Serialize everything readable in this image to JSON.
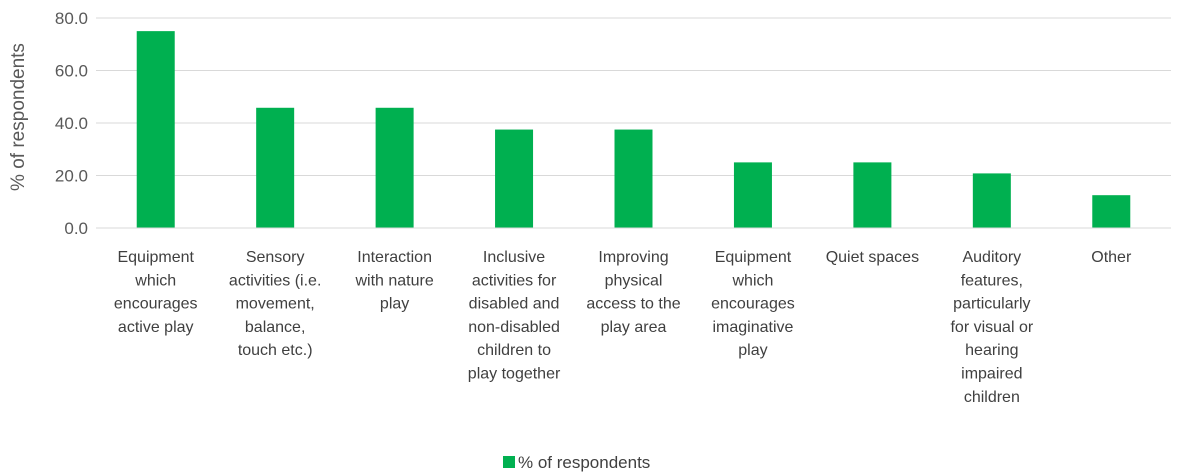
{
  "chart_data": {
    "type": "bar",
    "categories": [
      [
        "Equipment",
        "which",
        "encourages",
        "active play"
      ],
      [
        "Sensory",
        "activities (i.e.",
        "movement,",
        "balance,",
        "touch etc.)"
      ],
      [
        "Interaction",
        "with nature",
        "play"
      ],
      [
        "Inclusive",
        "activities for",
        "disabled and",
        "non-disabled",
        "children to",
        "play together"
      ],
      [
        "Improving",
        "physical",
        "access to the",
        "play area"
      ],
      [
        "Equipment",
        "which",
        "encourages",
        "imaginative",
        "play"
      ],
      [
        "Quiet spaces"
      ],
      [
        "Auditory",
        "features,",
        "particularly",
        "for visual or",
        "hearing",
        "impaired",
        "children"
      ],
      [
        "Other"
      ]
    ],
    "series": [
      {
        "name": "% of respondents",
        "values": [
          75.0,
          45.8,
          45.8,
          37.5,
          37.5,
          25.0,
          25.0,
          20.8,
          12.5
        ]
      }
    ],
    "ylabel": "% of respondents",
    "ylim": [
      0,
      80
    ],
    "yticks": [
      "0.0",
      "20.0",
      "40.0",
      "60.0",
      "80.0"
    ],
    "grid": true,
    "legend": "bottom",
    "bar_color": "#00B050"
  }
}
